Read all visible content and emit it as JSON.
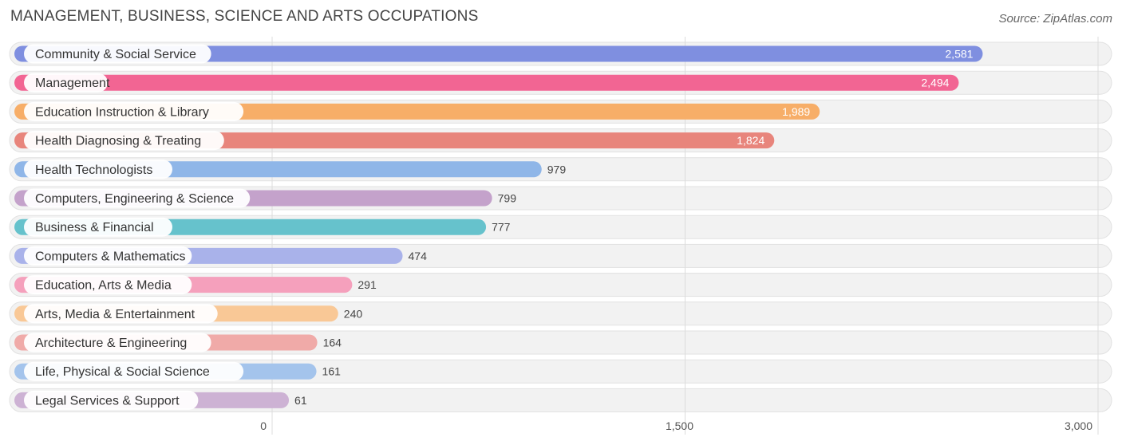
{
  "title": "MANAGEMENT, BUSINESS, SCIENCE AND ARTS OCCUPATIONS",
  "source": "Source: ZipAtlas.com",
  "chart_data": {
    "type": "bar",
    "orientation": "horizontal",
    "categories": [
      "Community & Social Service",
      "Management",
      "Education Instruction & Library",
      "Health Diagnosing & Treating",
      "Health Technologists",
      "Computers, Engineering & Science",
      "Business & Financial",
      "Computers & Mathematics",
      "Education, Arts & Media",
      "Arts, Media & Entertainment",
      "Architecture & Engineering",
      "Life, Physical & Social Science",
      "Legal Services & Support"
    ],
    "values": [
      2581,
      2494,
      1989,
      1824,
      979,
      799,
      777,
      474,
      291,
      240,
      164,
      161,
      61
    ],
    "value_labels": [
      "2,581",
      "2,494",
      "1,989",
      "1,824",
      "979",
      "799",
      "777",
      "474",
      "291",
      "240",
      "164",
      "161",
      "61"
    ],
    "colors": [
      "#7f8fe0",
      "#f26593",
      "#f7ae68",
      "#e8857c",
      "#8fb6e8",
      "#c4a2cb",
      "#66c2cc",
      "#a9b2ea",
      "#f5a0bc",
      "#f9c896",
      "#f0aaa8",
      "#a4c4ec",
      "#cdb2d4"
    ],
    "xlim": [
      0,
      3000
    ],
    "ticks": [
      0,
      1500,
      3000
    ],
    "tick_labels": [
      "0",
      "1,500",
      "3,000"
    ],
    "grid": true
  }
}
